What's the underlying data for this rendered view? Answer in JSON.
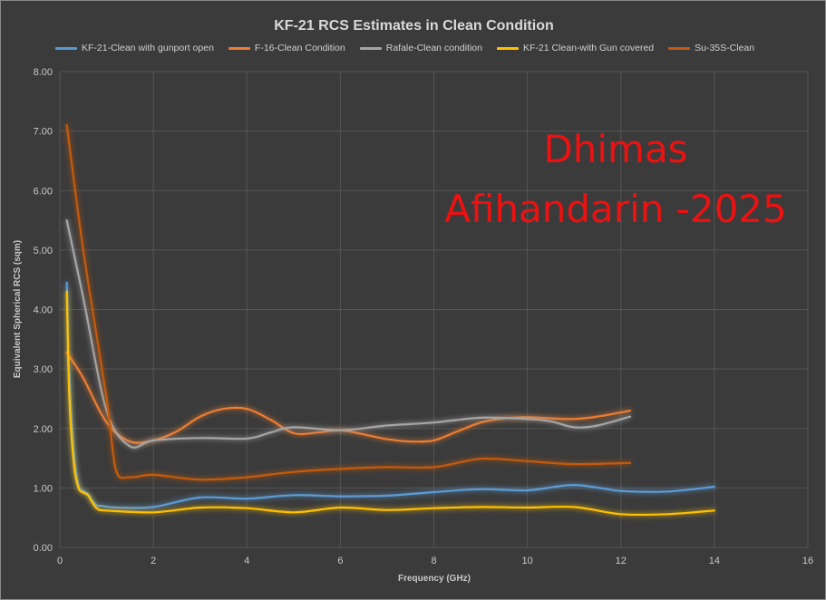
{
  "chart_data": {
    "type": "line",
    "title": "KF-21 RCS Estimates in Clean Condition",
    "xlabel": "Frequency  (GHz)",
    "ylabel": "Equivalent Spherical RCS (sqm)",
    "xlim": [
      0,
      16
    ],
    "ylim": [
      0,
      8
    ],
    "xticks": [
      "0",
      "2",
      "4",
      "6",
      "8",
      "10",
      "12",
      "14",
      "16"
    ],
    "yticks": [
      "0.00",
      "1.00",
      "2.00",
      "3.00",
      "4.00",
      "5.00",
      "6.00",
      "7.00",
      "8.00"
    ],
    "grid": true,
    "legend_position": "top",
    "series": [
      {
        "name": "KF-21-Clean with gunport open",
        "color": "#5b9bd5",
        "points": [
          [
            0.15,
            4.45
          ],
          [
            0.2,
            3.0
          ],
          [
            0.3,
            1.6
          ],
          [
            0.4,
            1.05
          ],
          [
            0.5,
            0.95
          ],
          [
            0.6,
            0.9
          ],
          [
            0.7,
            0.78
          ],
          [
            0.8,
            0.7
          ],
          [
            0.9,
            0.7
          ],
          [
            1.2,
            0.67
          ],
          [
            2.0,
            0.68
          ],
          [
            3.0,
            0.84
          ],
          [
            4.0,
            0.82
          ],
          [
            5.0,
            0.88
          ],
          [
            6.0,
            0.86
          ],
          [
            7.0,
            0.87
          ],
          [
            8.0,
            0.93
          ],
          [
            9.0,
            0.98
          ],
          [
            10.0,
            0.96
          ],
          [
            11.0,
            1.05
          ],
          [
            12.0,
            0.95
          ],
          [
            13.0,
            0.94
          ],
          [
            14.0,
            1.02
          ]
        ]
      },
      {
        "name": "F-16-Clean Condition",
        "color": "#ed7d31",
        "points": [
          [
            0.15,
            3.28
          ],
          [
            0.5,
            2.85
          ],
          [
            1.0,
            2.1
          ],
          [
            1.5,
            1.78
          ],
          [
            2.0,
            1.8
          ],
          [
            2.5,
            1.95
          ],
          [
            3.0,
            2.2
          ],
          [
            3.5,
            2.33
          ],
          [
            4.0,
            2.33
          ],
          [
            4.5,
            2.15
          ],
          [
            5.0,
            1.92
          ],
          [
            5.5,
            1.93
          ],
          [
            6.0,
            1.97
          ],
          [
            6.5,
            1.9
          ],
          [
            7.0,
            1.82
          ],
          [
            7.5,
            1.78
          ],
          [
            8.0,
            1.8
          ],
          [
            8.5,
            1.95
          ],
          [
            9.0,
            2.1
          ],
          [
            9.5,
            2.17
          ],
          [
            10.0,
            2.19
          ],
          [
            10.5,
            2.17
          ],
          [
            11.0,
            2.16
          ],
          [
            11.5,
            2.2
          ],
          [
            12.2,
            2.3
          ]
        ]
      },
      {
        "name": "Rafale-Clean condition",
        "color": "#a5a5a5",
        "points": [
          [
            0.15,
            5.5
          ],
          [
            0.5,
            4.2
          ],
          [
            1.0,
            2.3
          ],
          [
            1.5,
            1.7
          ],
          [
            2.0,
            1.8
          ],
          [
            3.0,
            1.84
          ],
          [
            4.0,
            1.83
          ],
          [
            4.5,
            1.93
          ],
          [
            5.0,
            2.02
          ],
          [
            6.0,
            1.97
          ],
          [
            7.0,
            2.05
          ],
          [
            8.0,
            2.1
          ],
          [
            9.0,
            2.18
          ],
          [
            10.0,
            2.16
          ],
          [
            10.5,
            2.12
          ],
          [
            11.0,
            2.02
          ],
          [
            11.5,
            2.05
          ],
          [
            12.2,
            2.2
          ]
        ]
      },
      {
        "name": "KF-21 Clean-with Gun covered",
        "color": "#ffc000",
        "points": [
          [
            0.15,
            4.3
          ],
          [
            0.2,
            2.6
          ],
          [
            0.3,
            1.4
          ],
          [
            0.4,
            1.0
          ],
          [
            0.5,
            0.92
          ],
          [
            0.6,
            0.88
          ],
          [
            0.7,
            0.75
          ],
          [
            0.8,
            0.65
          ],
          [
            1.0,
            0.62
          ],
          [
            2.0,
            0.59
          ],
          [
            3.0,
            0.67
          ],
          [
            4.0,
            0.66
          ],
          [
            5.0,
            0.59
          ],
          [
            6.0,
            0.67
          ],
          [
            7.0,
            0.63
          ],
          [
            8.0,
            0.66
          ],
          [
            9.0,
            0.68
          ],
          [
            10.0,
            0.67
          ],
          [
            11.0,
            0.68
          ],
          [
            12.0,
            0.56
          ],
          [
            13.0,
            0.56
          ],
          [
            14.0,
            0.62
          ]
        ]
      },
      {
        "name": "Su-35S-Clean",
        "color": "#c55a11",
        "points": [
          [
            0.15,
            7.1
          ],
          [
            0.5,
            5.0
          ],
          [
            1.0,
            2.5
          ],
          [
            1.2,
            1.3
          ],
          [
            1.5,
            1.18
          ],
          [
            2.0,
            1.22
          ],
          [
            3.0,
            1.14
          ],
          [
            4.0,
            1.18
          ],
          [
            5.0,
            1.27
          ],
          [
            6.0,
            1.32
          ],
          [
            7.0,
            1.35
          ],
          [
            8.0,
            1.35
          ],
          [
            9.0,
            1.49
          ],
          [
            10.0,
            1.45
          ],
          [
            11.0,
            1.4
          ],
          [
            12.2,
            1.42
          ]
        ]
      }
    ]
  },
  "watermark": {
    "line1": "Dhimas",
    "line2": "Afihandarin -2025",
    "color": "#ee1111"
  }
}
